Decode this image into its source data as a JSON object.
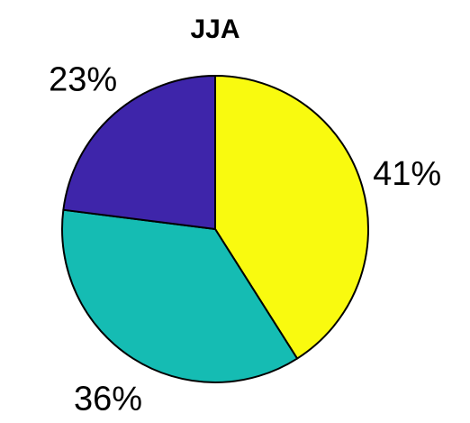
{
  "chart_data": {
    "type": "pie",
    "title": "JJA",
    "slices": [
      {
        "label": "41%",
        "value": 41,
        "color": "#f9fa0f"
      },
      {
        "label": "36%",
        "value": 36,
        "color": "#15bcb3"
      },
      {
        "label": "23%",
        "value": 23,
        "color": "#3e25aa"
      }
    ],
    "start": "top",
    "direction": "clockwise",
    "edge_color": "#000000"
  }
}
